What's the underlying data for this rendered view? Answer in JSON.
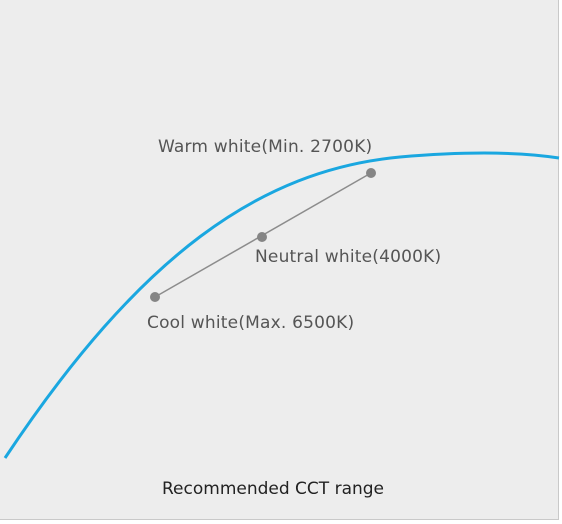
{
  "colors": {
    "background": "#ededed",
    "curve": "#1aa7e0",
    "line": "#8c8c8c",
    "point": "#858585",
    "label_text": "#555555",
    "caption_text": "#222222"
  },
  "points": {
    "warm": {
      "label": "Warm white(Min. 2700K)"
    },
    "neutral": {
      "label": "Neutral white(4000K)"
    },
    "cool": {
      "label": "Cool white(Max. 6500K)"
    }
  },
  "caption": "Recommended CCT range"
}
